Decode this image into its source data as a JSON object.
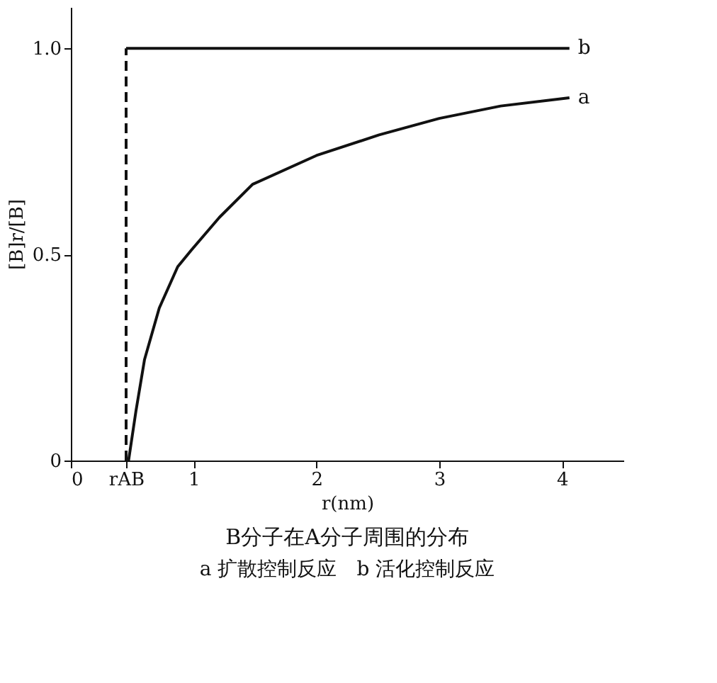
{
  "chart_data": {
    "type": "line",
    "title": "B分子在A分子周围的分布",
    "subtitle": "a 扩散控制反应　b 活化控制反应",
    "xlabel": "r(nm)",
    "ylabel": "[B]r/[B]",
    "xlim": [
      0,
      4.5
    ],
    "ylim": [
      0,
      1.1
    ],
    "xticks": [
      0,
      {
        "value": 0.45,
        "label": "rAB"
      },
      1,
      2,
      3,
      4
    ],
    "yticks": [
      0,
      0.5,
      {
        "value": 1.0,
        "label": "1.0"
      }
    ],
    "grid": false,
    "legend": false,
    "marker": "none",
    "series": [
      {
        "name": "a",
        "color": "#111111",
        "line_style": "solid",
        "x": [
          0.47,
          0.53,
          0.6,
          0.72,
          0.87,
          0.98,
          1.21,
          1.48,
          2.0,
          2.51,
          3.0,
          3.5,
          4.06
        ],
        "values": [
          0,
          0.12,
          0.245,
          0.37,
          0.47,
          0.51,
          0.59,
          0.67,
          0.74,
          0.79,
          0.83,
          0.86,
          0.88
        ]
      },
      {
        "name": "b",
        "color": "#111111",
        "line_style": "solid",
        "x": [
          0.45,
          4.06
        ],
        "values": [
          1,
          1
        ]
      },
      {
        "color": "#111111",
        "line_style": "dashed",
        "x": [
          0.45,
          0.45
        ],
        "values": [
          0,
          1
        ]
      }
    ]
  }
}
